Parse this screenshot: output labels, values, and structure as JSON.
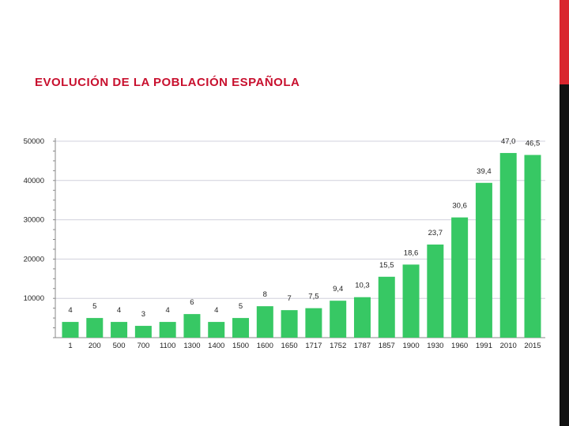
{
  "slide": {
    "title": "EVOLUCIÓN DE LA POBLACIÓN ESPAÑOLA"
  },
  "chart_data": {
    "type": "bar",
    "title": "",
    "xlabel": "",
    "ylabel": "",
    "ylim": [
      0,
      50000
    ],
    "y_ticks": [
      10000,
      20000,
      30000,
      40000,
      50000
    ],
    "grid": true,
    "bar_color": "#37c864",
    "gridline_color": "#d0d0dc",
    "categories": [
      "1",
      "200",
      "500",
      "700",
      "1100",
      "1300",
      "1400",
      "1500",
      "1600",
      "1650",
      "1717",
      "1752",
      "1787",
      "1857",
      "1900",
      "1930",
      "1960",
      "1991",
      "2010",
      "2015"
    ],
    "values": [
      4000,
      5000,
      4000,
      3000,
      4000,
      6000,
      4000,
      5000,
      8000,
      7000,
      7500,
      9400,
      10300,
      15500,
      18600,
      23700,
      30600,
      39400,
      47000,
      46500
    ],
    "data_labels": [
      "4",
      "5",
      "4",
      "3",
      "4",
      "6",
      "4",
      "5",
      "8",
      "7",
      "7,5",
      "9,4",
      "10,3",
      "15,5",
      "18,6",
      "23,7",
      "30,6",
      "39,4",
      "47,0",
      "46,5"
    ]
  },
  "decor": {
    "accent_top": "#d9262e",
    "accent_bottom": "#111111"
  }
}
